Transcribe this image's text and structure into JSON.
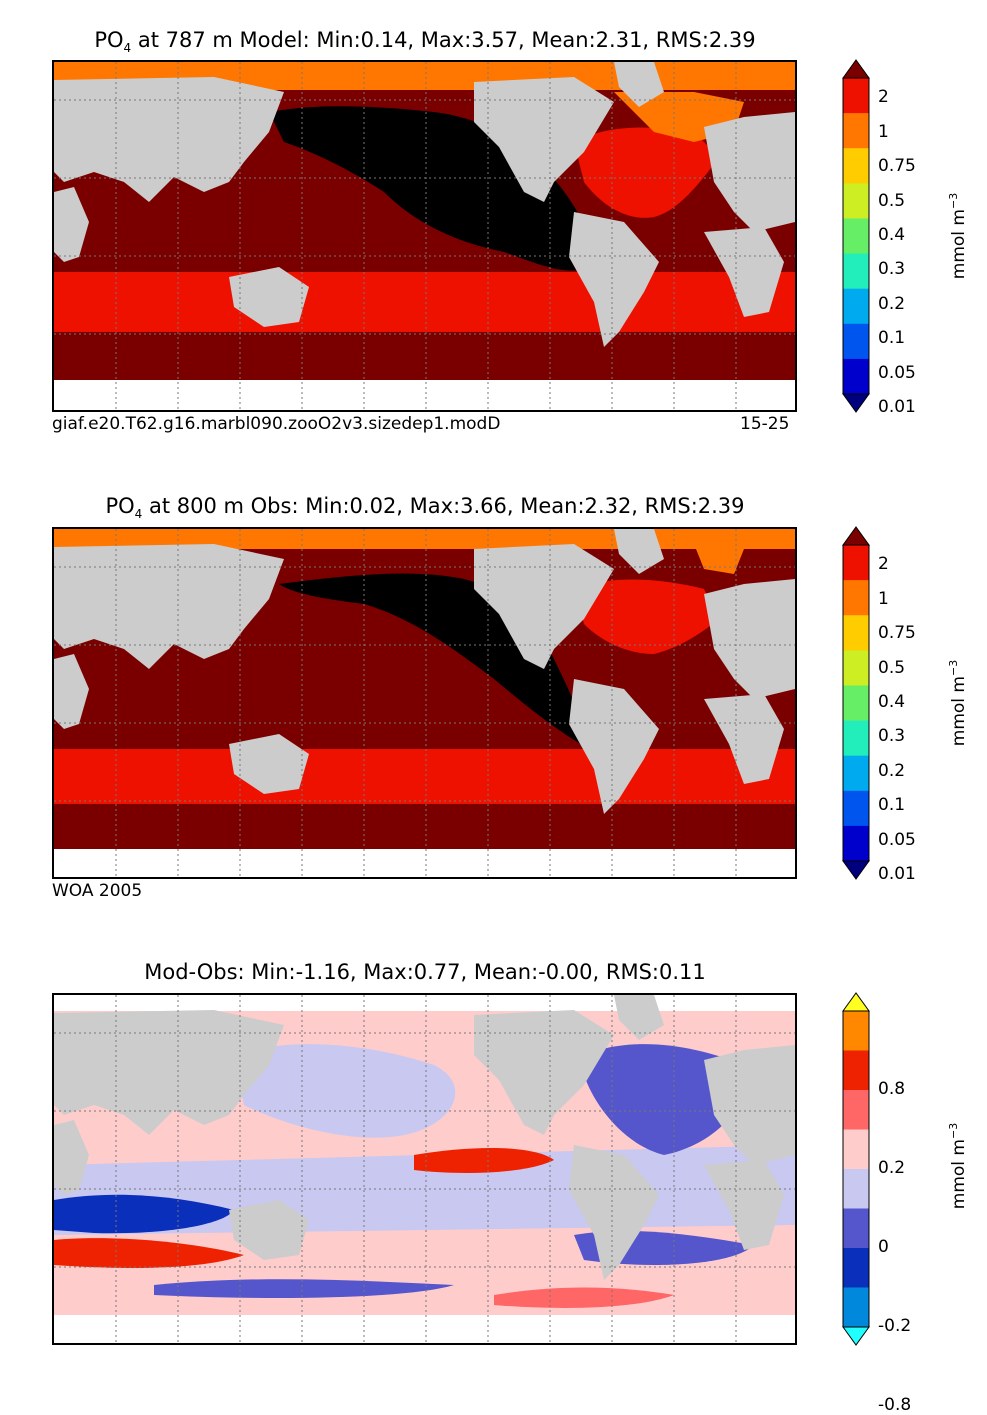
{
  "panels": [
    {
      "title_prefix": "PO",
      "title_sub": "4",
      "title_rest": " at 787 m Model: Min:0.14, Max:3.57, Mean:2.31, RMS:2.39",
      "footer_left": "giaf.e20.T62.g16.marbl090.zooO2v3.sizedep1.modD",
      "footer_right": "15-25",
      "colorbar": {
        "ticks": [
          "2",
          "1",
          "0.75",
          "0.5",
          "0.4",
          "0.3",
          "0.2",
          "0.1",
          "0.05",
          "0.01"
        ],
        "colors": [
          "#7a0000",
          "#ee1100",
          "#ff7700",
          "#ffcc00",
          "#ccee22",
          "#66ee66",
          "#22eebb",
          "#00aaee",
          "#0055ee",
          "#0000cc",
          "#00007f"
        ],
        "unit": "mmol m",
        "unit_sup": "−3"
      }
    },
    {
      "title_prefix": "PO",
      "title_sub": "4",
      "title_rest": " at 800 m Obs: Min:0.02, Max:3.66, Mean:2.32, RMS:2.39",
      "footer_left": "WOA 2005",
      "colorbar": {
        "ticks": [
          "2",
          "1",
          "0.75",
          "0.5",
          "0.4",
          "0.3",
          "0.2",
          "0.1",
          "0.05",
          "0.01"
        ],
        "colors": [
          "#7a0000",
          "#ee1100",
          "#ff7700",
          "#ffcc00",
          "#ccee22",
          "#66ee66",
          "#22eebb",
          "#00aaee",
          "#0055ee",
          "#0000cc",
          "#00007f"
        ],
        "unit": "mmol m",
        "unit_sup": "−3"
      }
    },
    {
      "title": "Mod-Obs: Min:-1.16, Max:0.77, Mean:-0.00, RMS:0.11",
      "colorbar": {
        "ticks": [
          "0.8",
          "0.2",
          "0",
          "-0.2",
          "-0.8"
        ],
        "colors": [
          "#ffff22",
          "#ff8800",
          "#ee2200",
          "#ff6666",
          "#ffcccc",
          "#c8c8f0",
          "#5555cc",
          "#0a2fbb",
          "#0088dd",
          "#22ffff"
        ],
        "unit": "mmol m",
        "unit_sup": "−3"
      }
    }
  ],
  "colors": {
    "land": "#cccccc",
    "missing": "#ffffff",
    "black_region": "#000000",
    "arctic": "#ff7700"
  }
}
